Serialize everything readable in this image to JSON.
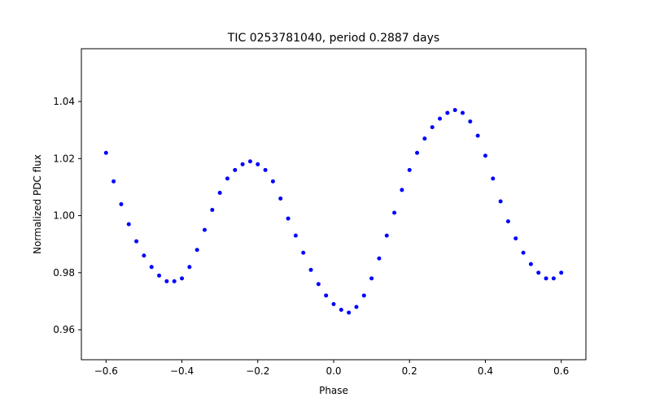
{
  "chart_data": {
    "type": "scatter",
    "title": "TIC 0253781040, period 0.2887 days",
    "xlabel": "Phase",
    "ylabel": "Normalized PDC flux",
    "xlim": [
      -0.665,
      0.665
    ],
    "ylim": [
      0.9495,
      1.0585
    ],
    "xticks": [
      -0.6,
      -0.4,
      -0.2,
      0.0,
      0.2,
      0.4,
      0.6
    ],
    "xtick_labels": [
      "−0.6",
      "−0.4",
      "−0.2",
      "0.0",
      "0.2",
      "0.4",
      "0.6"
    ],
    "yticks": [
      0.96,
      0.98,
      1.0,
      1.02,
      1.04
    ],
    "ytick_labels": [
      "0.96",
      "0.98",
      "1.00",
      "1.02",
      "1.04"
    ],
    "grid": false,
    "marker_color": "#0000ff",
    "series": [
      {
        "x": [
          -0.6,
          -0.58,
          -0.56,
          -0.54,
          -0.52,
          -0.5,
          -0.48,
          -0.46,
          -0.44,
          -0.42,
          -0.4,
          -0.38,
          -0.36,
          -0.34,
          -0.32,
          -0.3,
          -0.28,
          -0.26,
          -0.24,
          -0.22,
          -0.2,
          -0.18,
          -0.16,
          -0.14,
          -0.12,
          -0.1,
          -0.08,
          -0.06,
          -0.04,
          -0.02,
          0.0,
          0.02,
          0.04,
          0.06,
          0.08,
          0.1,
          0.12,
          0.14,
          0.16,
          0.18,
          0.2,
          0.22,
          0.24,
          0.26,
          0.28,
          0.3,
          0.32,
          0.34,
          0.36,
          0.38,
          0.4,
          0.42,
          0.44,
          0.46,
          0.48,
          0.5,
          0.52,
          0.54,
          0.56,
          0.58,
          0.6
        ],
        "y": [
          1.022,
          1.012,
          1.004,
          0.997,
          0.991,
          0.986,
          0.982,
          0.979,
          0.977,
          0.977,
          0.978,
          0.982,
          0.988,
          0.995,
          1.002,
          1.008,
          1.013,
          1.016,
          1.018,
          1.019,
          1.018,
          1.016,
          1.012,
          1.006,
          0.999,
          0.993,
          0.987,
          0.981,
          0.976,
          0.972,
          0.969,
          0.967,
          0.966,
          0.968,
          0.972,
          0.978,
          0.985,
          0.993,
          1.001,
          1.009,
          1.016,
          1.022,
          1.027,
          1.031,
          1.034,
          1.036,
          1.037,
          1.036,
          1.033,
          1.028,
          1.021,
          1.013,
          1.005,
          0.998,
          0.992,
          0.987,
          0.983,
          0.98,
          0.978,
          0.978,
          0.98
        ]
      }
    ]
  }
}
